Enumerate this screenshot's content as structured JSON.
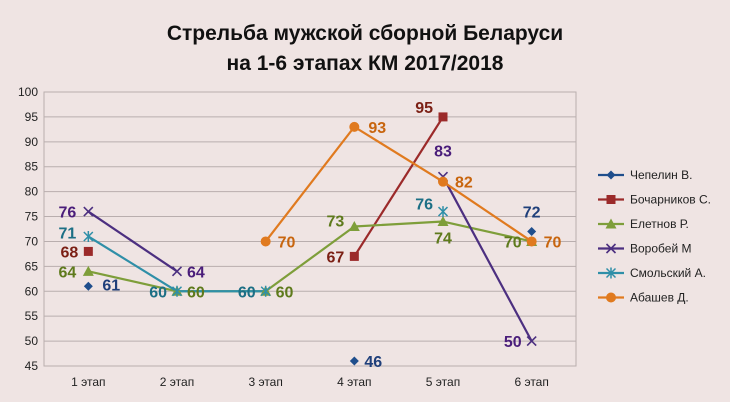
{
  "chart_data": {
    "type": "line",
    "title": [
      "Стрельба мужской сборной Беларуси",
      "на 1-6 этапах КМ 2017/2018"
    ],
    "xlabel": "",
    "ylabel": "",
    "categories": [
      "1 этап",
      "2 этап",
      "3 этап",
      "4 этап",
      "5 этап",
      "6 этап"
    ],
    "ylim": [
      45,
      100
    ],
    "ytick_step": 5,
    "grid": true,
    "legend_position": "right",
    "series": [
      {
        "name": "Чепелин В.",
        "values": [
          61,
          null,
          null,
          46,
          null,
          72
        ],
        "color": "#1f4e8c",
        "label_color": "#1f3f7a",
        "marker": "diamond",
        "labels": [
          "61",
          null,
          null,
          "46",
          null,
          "72"
        ]
      },
      {
        "name": "Бочарников С.",
        "values": [
          68,
          null,
          null,
          67,
          95,
          null
        ],
        "color": "#9b2a2a",
        "label_color": "#7b1f14",
        "marker": "square",
        "labels": [
          "68",
          null,
          null,
          "67",
          "95",
          null
        ]
      },
      {
        "name": "Елетнов Р.",
        "values": [
          64,
          60,
          60,
          73,
          74,
          70
        ],
        "color": "#7e9e3a",
        "label_color": "#5e7a1c",
        "marker": "triangle",
        "labels": [
          "64",
          "60",
          "60",
          "73",
          "74",
          "70"
        ]
      },
      {
        "name": "Воробей М",
        "values": [
          76,
          64,
          null,
          null,
          83,
          50
        ],
        "color": "#4c2f80",
        "label_color": "#4a1d7a",
        "marker": "x",
        "labels": [
          "76",
          "64",
          null,
          null,
          "83",
          "50"
        ]
      },
      {
        "name": "Смольский А.",
        "values": [
          71,
          60,
          60,
          null,
          76,
          null
        ],
        "color": "#2f8fa8",
        "label_color": "#1c6f85",
        "marker": "star",
        "labels": [
          "71",
          "60",
          "60",
          null,
          "76",
          null
        ]
      },
      {
        "name": "Абашев Д.",
        "values": [
          null,
          null,
          70,
          93,
          82,
          70
        ],
        "color": "#e07a1f",
        "label_color": "#c8650e",
        "marker": "circle",
        "labels": [
          null,
          null,
          "70",
          "93",
          "82",
          "70"
        ]
      }
    ]
  }
}
